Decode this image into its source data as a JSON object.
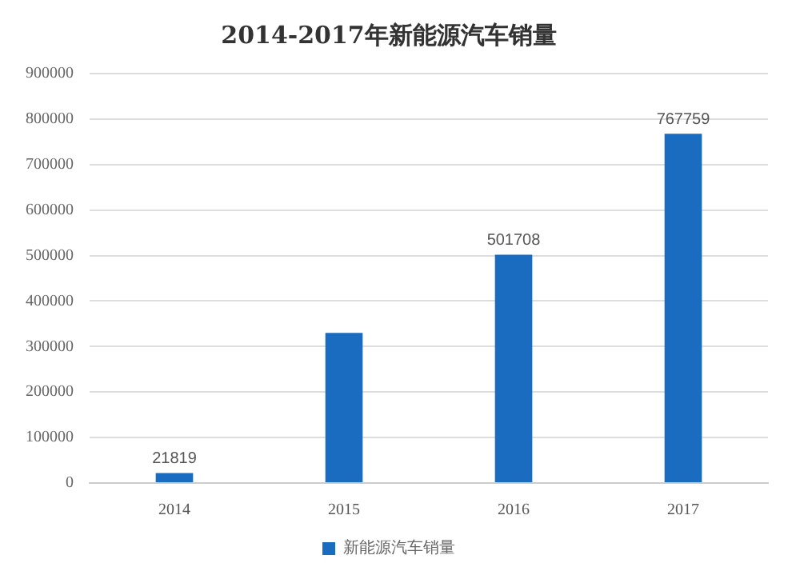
{
  "chart_data": {
    "type": "bar",
    "title": "2014-2017年新能源汽车销量",
    "categories": [
      "2014",
      "2015",
      "2016",
      "2017"
    ],
    "series": [
      {
        "name": "新能源汽车销量",
        "color": "#1a6cc0",
        "values": [
          21819,
          330000,
          501708,
          767759
        ],
        "value_labels": [
          "21819",
          null,
          "501708",
          "767759"
        ]
      }
    ],
    "ylim": [
      0,
      900000
    ],
    "yticks": [
      0,
      100000,
      200000,
      300000,
      400000,
      500000,
      600000,
      700000,
      800000,
      900000
    ],
    "grid": "y",
    "legend": "bottom"
  }
}
